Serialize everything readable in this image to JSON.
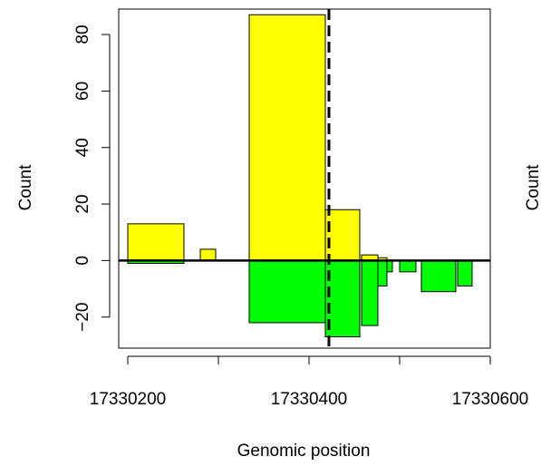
{
  "chart_data": {
    "type": "bar",
    "xlabel": "Genomic position",
    "ylabel": "Count",
    "clipped_ylabel": "Count",
    "xlim": [
      17330190,
      17330600
    ],
    "ylim": [
      -31,
      89
    ],
    "x_ticks": [
      17330200,
      17330300,
      17330400,
      17330500,
      17330600
    ],
    "x_tick_labels": [
      {
        "value": 17330200,
        "label": "17330200"
      },
      {
        "value": 17330400,
        "label": "17330400"
      },
      {
        "value": 17330600,
        "label": "17330600"
      }
    ],
    "y_ticks": [
      {
        "value": -20,
        "label": "−20"
      },
      {
        "value": 0,
        "label": "0"
      },
      {
        "value": 20,
        "label": "20"
      },
      {
        "value": 40,
        "label": "40"
      },
      {
        "value": 60,
        "label": "60"
      },
      {
        "value": 80,
        "label": "80"
      }
    ],
    "vline": 17330422,
    "series": [
      {
        "color": "#ffff00",
        "bars": [
          {
            "x0": 17330200,
            "x1": 17330262,
            "value": 13
          },
          {
            "x0": 17330280,
            "x1": 17330297,
            "value": 4
          },
          {
            "x0": 17330334,
            "x1": 17330418,
            "value": 87
          },
          {
            "x0": 17330418,
            "x1": 17330456,
            "value": 18
          },
          {
            "x0": 17330458,
            "x1": 17330476,
            "value": 2
          },
          {
            "x0": 17330476,
            "x1": 17330486,
            "value": 1
          }
        ]
      },
      {
        "color": "#00ff00",
        "bars": [
          {
            "x0": 17330200,
            "x1": 17330262,
            "value": -1
          },
          {
            "x0": 17330334,
            "x1": 17330418,
            "value": -22
          },
          {
            "x0": 17330418,
            "x1": 17330456,
            "value": -27
          },
          {
            "x0": 17330458,
            "x1": 17330476,
            "value": -23
          },
          {
            "x0": 17330476,
            "x1": 17330486,
            "value": -9
          },
          {
            "x0": 17330486,
            "x1": 17330492,
            "value": -4
          },
          {
            "x0": 17330500,
            "x1": 17330518,
            "value": -4
          },
          {
            "x0": 17330524,
            "x1": 17330562,
            "value": -11
          },
          {
            "x0": 17330564,
            "x1": 17330580,
            "value": -9
          }
        ]
      }
    ]
  }
}
